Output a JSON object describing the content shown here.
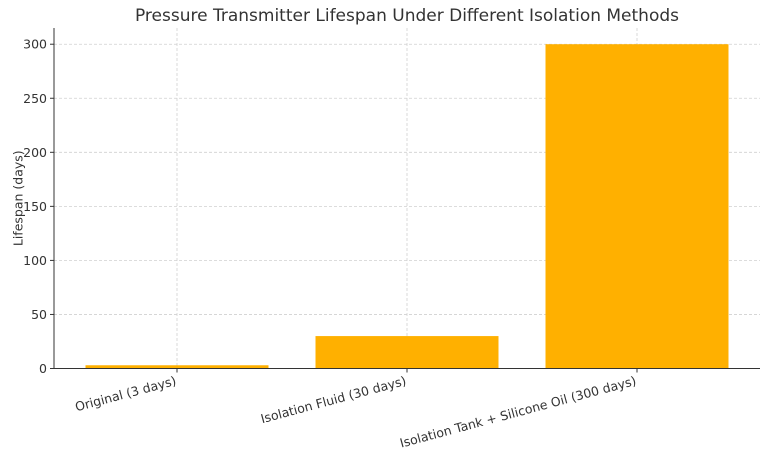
{
  "chart_data": {
    "type": "bar",
    "title": "Pressure Transmitter Lifespan Under Different Isolation Methods",
    "xlabel": "",
    "ylabel": "Lifespan (days)",
    "categories": [
      "Original (3 days)",
      "Isolation Fluid (30 days)",
      "Isolation Tank + Silicone Oil (300 days)"
    ],
    "values": [
      3,
      30,
      300
    ],
    "ylim": [
      0,
      315
    ],
    "yticks": [
      0,
      50,
      100,
      150,
      200,
      250,
      300
    ],
    "grid": true,
    "bar_color": "#ffb000"
  }
}
